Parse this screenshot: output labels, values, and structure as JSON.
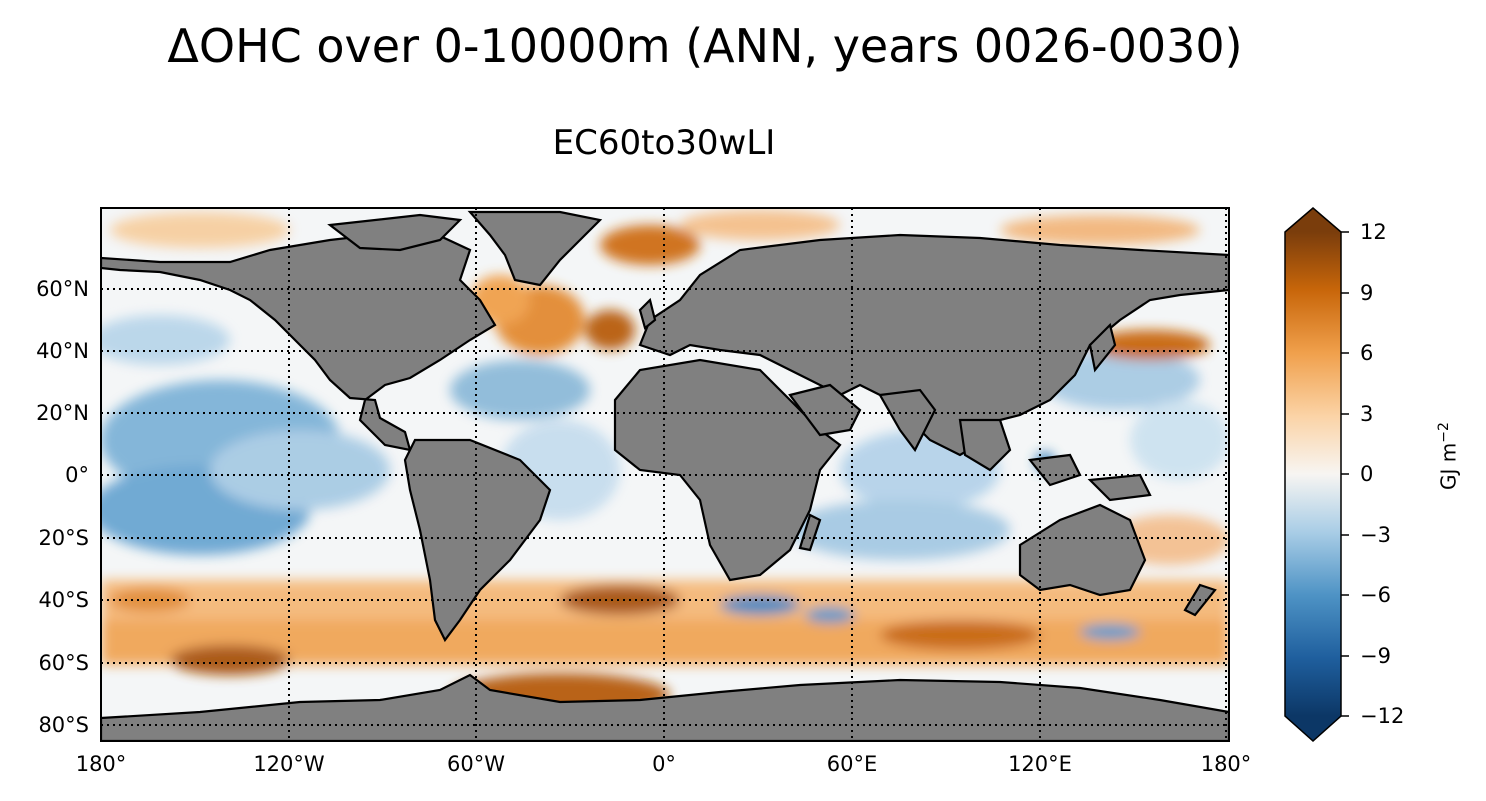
{
  "title": "ΔOHC over 0-10000m (ANN, years 0026-0030)",
  "subtitle": "EC60to30wLI",
  "map": {
    "projection": "PlateCarree",
    "land_color": "#808080",
    "coastline_color": "#000000",
    "gridlines": "dotted",
    "lon_range": [
      -180,
      180
    ],
    "lat_range": [
      -85,
      85
    ],
    "lat_ticks": [
      "60°N",
      "40°N",
      "20°N",
      "0°",
      "20°S",
      "40°S",
      "60°S",
      "80°S"
    ],
    "lon_ticks": [
      "180°",
      "120°W",
      "60°W",
      "0°",
      "60°E",
      "120°E",
      "180°"
    ]
  },
  "colorbar": {
    "label": "GJ m",
    "label_exponent": "−2",
    "min": -12,
    "max": 12,
    "ticks": [
      "12",
      "9",
      "6",
      "3",
      "0",
      "−3",
      "−6",
      "−9",
      "−12"
    ],
    "extend": "both",
    "colormap": "balance-orange-blue",
    "colors": {
      "max": "#7a3d0c",
      "high": "#c8660a",
      "mid_pos": "#f7b36b",
      "zero": "#f7f5f2",
      "mid_neg": "#9cc5e0",
      "low": "#2f7ab5",
      "min": "#0c3766"
    }
  }
}
